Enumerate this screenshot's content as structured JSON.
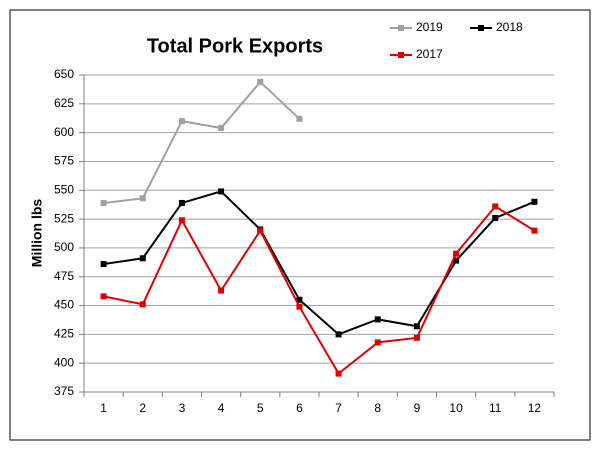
{
  "chart_data": {
    "type": "line",
    "title": "Total Pork Exports",
    "y_label": "Million lbs",
    "categories": [
      "1",
      "2",
      "3",
      "4",
      "5",
      "6",
      "7",
      "8",
      "9",
      "10",
      "11",
      "12"
    ],
    "series": [
      {
        "name": "2019",
        "color": "#a0a0a0",
        "values": [
          539,
          543,
          610,
          604,
          644,
          612,
          null,
          null,
          null,
          null,
          null,
          null
        ]
      },
      {
        "name": "2018",
        "color": "#000000",
        "values": [
          486,
          491,
          539,
          549,
          516,
          455,
          425,
          438,
          432,
          489,
          526,
          540
        ]
      },
      {
        "name": "2017",
        "color": "#e00000",
        "values": [
          458,
          451,
          524,
          463,
          515,
          449,
          391,
          418,
          422,
          495,
          536,
          515
        ]
      }
    ],
    "ylim": [
      375,
      650
    ],
    "yticks": [
      375,
      400,
      425,
      450,
      475,
      500,
      525,
      550,
      575,
      600,
      625,
      650
    ],
    "grid": true,
    "legend": "top-right"
  }
}
